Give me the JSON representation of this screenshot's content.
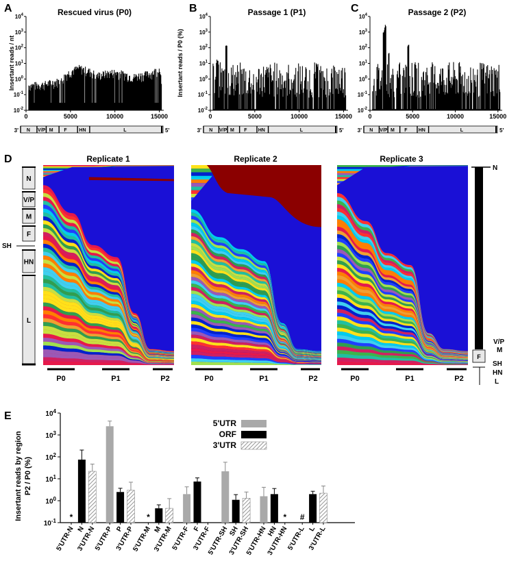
{
  "figure": {
    "panel_letters": [
      "A",
      "B",
      "C",
      "D",
      "E"
    ]
  },
  "panel_A": {
    "title": "Rescued virus (P0)",
    "ylabel": "Insertant reads / nt",
    "yticks": [
      "10",
      "10",
      "10",
      "10",
      "10",
      "10",
      "10"
    ],
    "yexps": [
      "4",
      "3",
      "2",
      "1",
      "0",
      "-1",
      "-2"
    ],
    "xticks": [
      "0",
      "5000",
      "10000",
      "15000"
    ]
  },
  "panel_B": {
    "title": "Passage 1 (P1)",
    "ylabel": "Insertant reads / P0 (%)",
    "xticks": [
      "0",
      "5000",
      "10000",
      "15000"
    ]
  },
  "panel_C": {
    "title": "Passage 2 (P2)",
    "xticks": [
      "0",
      "5000",
      "10000",
      "15000"
    ]
  },
  "genome_map": {
    "end3": "3'",
    "end5": "5'",
    "genes": [
      "N",
      "V/P",
      "M",
      "F",
      "HN",
      "L"
    ]
  },
  "panel_D": {
    "titles": [
      "Replicate 1",
      "Replicate 2",
      "Replicate 3"
    ],
    "passages": [
      "P0",
      "P1",
      "P2"
    ],
    "left_genes": [
      "N",
      "V/P",
      "M",
      "F",
      "SH",
      "HN",
      "L"
    ],
    "right_genes": [
      "N",
      "V/P",
      "M",
      "F",
      "SH",
      "HN",
      "L"
    ],
    "palette": [
      "#e6194b",
      "#ffe119",
      "#3cb44b",
      "#0022cc",
      "#00ccee",
      "#ff7f00",
      "#9b59b6",
      "#20c0a0",
      "#ff3030",
      "#c8e040",
      "#1f3fff",
      "#f0a030",
      "#3fd0f0",
      "#2f9f4f",
      "#d02060",
      "#a0e050"
    ],
    "dominant": [
      "#1a10d6",
      "#8b0000"
    ]
  },
  "chart_data": [
    {
      "panel": "A",
      "type": "area",
      "title": "Rescued virus (P0)",
      "xlabel": "",
      "ylabel": "Insertant reads / nt",
      "yscale": "log",
      "xlim": [
        0,
        15500
      ],
      "ylim": [
        0.01,
        10000
      ],
      "profile": [
        {
          "x": 500,
          "y": 0.35
        },
        {
          "x": 2000,
          "y": 0.4
        },
        {
          "x": 4000,
          "y": 0.7
        },
        {
          "x": 6000,
          "y": 4.5
        },
        {
          "x": 8000,
          "y": 1.5
        },
        {
          "x": 10000,
          "y": 2.5
        },
        {
          "x": 12000,
          "y": 1.2
        },
        {
          "x": 14000,
          "y": 2.0
        },
        {
          "x": 15200,
          "y": 4.0
        }
      ]
    },
    {
      "panel": "B",
      "type": "bar",
      "title": "Passage 1 (P1)",
      "ylabel": "Insertant reads / P0 (%)",
      "yscale": "log",
      "xlim": [
        0,
        15500
      ],
      "ylim": [
        0.01,
        10000
      ],
      "peaks": [
        {
          "x": 1800,
          "y": 200
        },
        {
          "x": 800,
          "y": 20
        },
        {
          "x": 12000,
          "y": 10
        }
      ]
    },
    {
      "panel": "C",
      "type": "bar",
      "title": "Passage 2 (P2)",
      "yscale": "log",
      "xlim": [
        0,
        15500
      ],
      "ylim": [
        0.01,
        10000
      ],
      "peaks": [
        {
          "x": 1800,
          "y": 3000
        },
        {
          "x": 1600,
          "y": 1500
        },
        {
          "x": 4500,
          "y": 200
        },
        {
          "x": 2200,
          "y": 50
        }
      ]
    },
    {
      "panel": "E",
      "type": "bar",
      "title": "",
      "ylabel": "Insertant reads by region",
      "ylabel2": "P2 / P0 (%)",
      "yscale": "log",
      "ylim": [
        0.1,
        10000
      ],
      "yticks": [
        "10",
        "10",
        "10",
        "10",
        "10",
        "10"
      ],
      "yexps": [
        "-1",
        "0",
        "1",
        "2",
        "3",
        "4"
      ],
      "legend": [
        {
          "name": "5'UTR",
          "color": "#a9a9a9"
        },
        {
          "name": "ORF",
          "color": "#000000"
        },
        {
          "name": "3'UTR",
          "color": "hatched"
        }
      ],
      "categories": [
        "5'UTR-N",
        "N",
        "3'UTR-N",
        "5'UTR-P",
        "P",
        "3'UTR-P",
        "5'UTR-M",
        "M",
        "3'UTR-M",
        "5'UTR-F",
        "F",
        "3'UTR-F",
        "5'UTR-SH",
        "SH",
        "3'UTR-SH",
        "5'UTR-HN",
        "HN",
        "3'UTR-HN",
        "5'UTR-L",
        "L",
        "3'UTR-L"
      ],
      "values": [
        null,
        75,
        22,
        2500,
        2.5,
        3,
        null,
        0.45,
        0.45,
        2,
        7.5,
        null,
        22,
        1.1,
        1.3,
        1.6,
        2.0,
        null,
        null,
        2.0,
        2.2
      ],
      "errors": [
        null,
        130,
        25,
        1800,
        1.2,
        4,
        null,
        0.2,
        0.8,
        2.3,
        3.5,
        null,
        35,
        0.8,
        1.2,
        2.5,
        1.6,
        null,
        null,
        0.7,
        2.5
      ],
      "kinds": [
        "utr5",
        "orf",
        "utr3",
        "utr5",
        "orf",
        "utr3",
        "utr5",
        "orf",
        "utr3",
        "utr5",
        "orf",
        "utr3",
        "utr5",
        "orf",
        "utr3",
        "utr5",
        "orf",
        "utr3",
        "utr5",
        "orf",
        "utr3"
      ],
      "markers": [
        {
          "category": "5'UTR-N",
          "symbol": "*"
        },
        {
          "category": "5'UTR-M",
          "symbol": "*"
        },
        {
          "category": "3'UTR-HN",
          "symbol": "*"
        },
        {
          "category": "5'UTR-L",
          "symbol": "#"
        }
      ]
    }
  ]
}
